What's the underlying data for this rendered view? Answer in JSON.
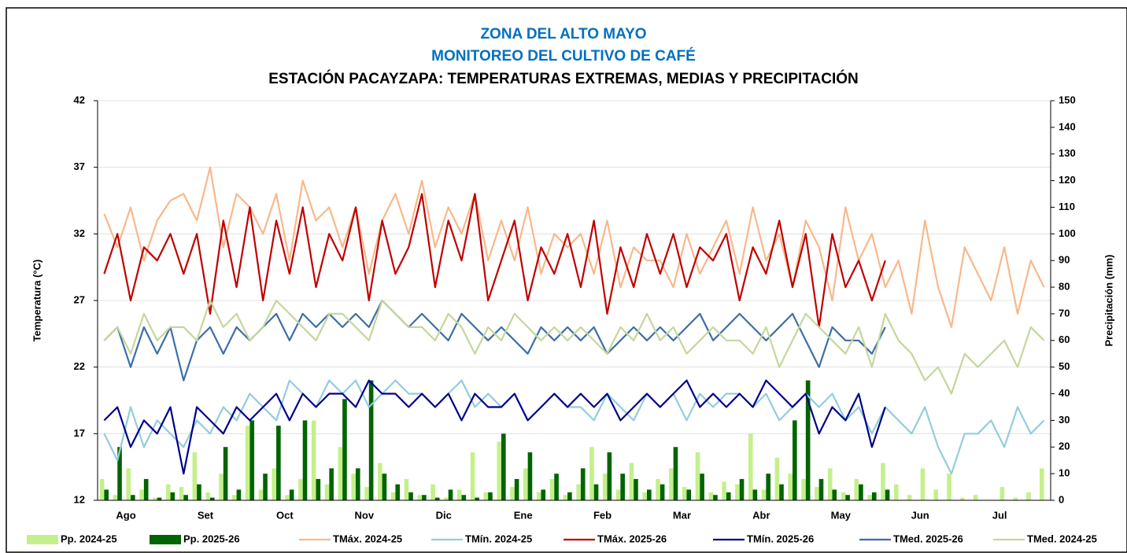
{
  "chart_data": {
    "type": "line",
    "title": "ZONA DEL ALTO MAYO",
    "subtitle": "MONITOREO DEL CULTIVO DE CAFÉ",
    "chart_title": "ESTACIÓN PACAYZAPA: TEMPERATURAS  EXTREMAS,  MEDIAS Y PRECIPITACIÓN",
    "y_label": "Temperatura (°C)",
    "y2_label": "Precipitación (mm)",
    "categories": [
      null,
      null,
      "Ago",
      null,
      null,
      null,
      null,
      null,
      "Set",
      null,
      null,
      null,
      null,
      null,
      "Oct",
      null,
      null,
      null,
      null,
      null,
      "Nov",
      null,
      null,
      null,
      null,
      null,
      "Dic",
      null,
      null,
      null,
      null,
      null,
      "Ene",
      null,
      null,
      null,
      null,
      null,
      "Feb",
      null,
      null,
      null,
      null,
      null,
      "Mar",
      null,
      null,
      null,
      null,
      null,
      "Abr",
      null,
      null,
      null,
      null,
      null,
      "May",
      null,
      null,
      null,
      null,
      null,
      "Jun",
      null,
      null,
      null,
      null,
      null,
      "Jul",
      null,
      null,
      null
    ],
    "ylim": [
      12,
      42
    ],
    "yticks": [
      12,
      17,
      22,
      27,
      32,
      37,
      42
    ],
    "y2lim": [
      0,
      150
    ],
    "y2ticks": [
      0,
      10,
      20,
      30,
      40,
      50,
      60,
      70,
      80,
      90,
      100,
      110,
      120,
      130,
      140,
      150
    ],
    "grid": true,
    "series": [
      {
        "name": "Pp. 2024-25",
        "type": "bar",
        "axis": "y2",
        "color": "#c4f08c",
        "values": [
          8,
          2,
          12,
          4,
          1,
          6,
          5,
          18,
          3,
          10,
          2,
          28,
          4,
          12,
          2,
          8,
          30,
          6,
          20,
          10,
          5,
          14,
          3,
          8,
          2,
          6,
          1,
          4,
          18,
          3,
          22,
          5,
          12,
          3,
          8,
          2,
          6,
          20,
          10,
          4,
          14,
          3,
          8,
          12,
          5,
          18,
          3,
          7,
          6,
          25,
          4,
          16,
          10,
          8,
          5,
          12,
          3,
          8,
          2,
          14,
          6,
          2,
          12,
          4,
          10,
          1,
          2,
          0,
          5,
          1,
          3,
          12
        ]
      },
      {
        "name": "Pp. 2025-26",
        "type": "bar",
        "axis": "y2",
        "color": "#006400",
        "values": [
          4,
          20,
          2,
          8,
          1,
          3,
          2,
          6,
          1,
          20,
          4,
          30,
          10,
          28,
          4,
          30,
          8,
          12,
          38,
          12,
          45,
          10,
          6,
          3,
          2,
          1,
          4,
          2,
          1,
          3,
          25,
          8,
          18,
          4,
          10,
          3,
          12,
          6,
          18,
          10,
          8,
          4,
          6,
          20,
          4,
          10,
          2,
          3,
          8,
          4,
          10,
          6,
          30,
          45,
          8,
          4,
          2,
          6,
          3,
          4,
          null,
          null,
          null,
          null,
          null,
          null,
          null,
          null,
          null,
          null,
          null,
          null
        ]
      },
      {
        "name": "TMáx. 2024-25",
        "type": "line",
        "color": "#f8b88b",
        "values": [
          33.5,
          31,
          34,
          30,
          33,
          34.5,
          35,
          33,
          37,
          31,
          35,
          34,
          32,
          35,
          30,
          36,
          33,
          34,
          31,
          34,
          29,
          33,
          35,
          32,
          36,
          31,
          34,
          32,
          35,
          30,
          33,
          30,
          34,
          29,
          32,
          31,
          32,
          29,
          33,
          28,
          31,
          30,
          30,
          28,
          32,
          29,
          31,
          33,
          29,
          34,
          30,
          32,
          28,
          33,
          31,
          27,
          34,
          30,
          32,
          28,
          30,
          26,
          33,
          28,
          25,
          31,
          29,
          27,
          31,
          26,
          30,
          28
        ]
      },
      {
        "name": "TMín. 2024-25",
        "type": "line",
        "color": "#92cddc",
        "values": [
          17,
          15,
          19,
          16,
          18,
          17,
          16,
          18,
          17,
          19,
          18,
          20,
          19,
          18,
          21,
          20,
          19,
          21,
          20,
          21,
          19,
          20,
          21,
          20,
          20,
          19,
          20,
          21,
          19,
          20,
          19,
          20,
          18,
          19,
          20,
          19,
          19,
          18,
          20,
          19,
          18,
          20,
          19,
          20,
          18,
          20,
          19,
          20,
          20,
          19,
          20,
          18,
          19,
          20,
          19,
          20,
          18,
          19,
          17,
          19,
          18,
          17,
          19,
          16,
          14,
          17,
          17,
          18,
          16,
          19,
          17,
          18
        ]
      },
      {
        "name": "TMáx. 2025-26",
        "type": "line",
        "color": "#c00000",
        "values": [
          29,
          32,
          27,
          31,
          30,
          32,
          29,
          32,
          26,
          33,
          28,
          34,
          27,
          33,
          29,
          34,
          28,
          32,
          30,
          34,
          27,
          33,
          29,
          31,
          35,
          28,
          33,
          30,
          35,
          27,
          30,
          33,
          27,
          31,
          29,
          32,
          28,
          33,
          26,
          31,
          28,
          32,
          29,
          32,
          28,
          31,
          30,
          32,
          27,
          31,
          29,
          33,
          28,
          32,
          25,
          32,
          28,
          30,
          27,
          30,
          null,
          null,
          null,
          null,
          null,
          null,
          null,
          null,
          null,
          null,
          null,
          null
        ]
      },
      {
        "name": "TMín. 2025-26",
        "type": "line",
        "color": "#00008b",
        "values": [
          18,
          19,
          16,
          18,
          17,
          19,
          14,
          19,
          18,
          17,
          19,
          18,
          19,
          20,
          18,
          20,
          19,
          20,
          20,
          19,
          21,
          20,
          20,
          19,
          20,
          19,
          20,
          18,
          20,
          19,
          19,
          20,
          18,
          19,
          20,
          19,
          20,
          19,
          20,
          18,
          19,
          20,
          19,
          20,
          21,
          19,
          20,
          19,
          20,
          19,
          21,
          20,
          19,
          20,
          17,
          19,
          18,
          20,
          16,
          19,
          null,
          null,
          null,
          null,
          null,
          null,
          null,
          null,
          null,
          null,
          null,
          null
        ]
      },
      {
        "name": "TMed. 2025-26",
        "type": "line",
        "color": "#3c6ea8",
        "values": [
          24,
          25,
          22,
          25,
          23,
          25,
          21,
          24,
          25,
          23,
          25,
          24,
          25,
          26,
          24,
          26,
          25,
          26,
          25,
          26,
          25,
          27,
          26,
          25,
          26,
          25,
          24,
          26,
          25,
          24,
          25,
          24,
          23,
          25,
          24,
          25,
          24,
          25,
          23,
          24,
          25,
          24,
          25,
          24,
          25,
          26,
          24,
          25,
          26,
          25,
          24,
          25,
          26,
          24,
          22,
          25,
          24,
          24,
          23,
          25,
          null,
          null,
          null,
          null,
          null,
          null,
          null,
          null,
          null,
          null,
          null,
          null
        ]
      },
      {
        "name": "TMed. 2024-25",
        "type": "line",
        "color": "#c4d79b",
        "values": [
          24,
          25,
          23,
          26,
          24,
          25,
          25,
          24,
          27,
          25,
          26,
          24,
          25,
          27,
          26,
          25,
          24,
          26,
          26,
          25,
          24,
          27,
          26,
          25,
          25,
          24,
          26,
          25,
          23,
          25,
          24,
          26,
          25,
          24,
          25,
          24,
          25,
          24,
          23,
          25,
          24,
          26,
          24,
          25,
          23,
          24,
          25,
          24,
          24,
          23,
          25,
          22,
          24,
          26,
          25,
          24,
          23,
          25,
          22,
          26,
          24,
          23,
          21,
          22,
          20,
          23,
          22,
          23,
          24,
          22,
          25,
          24
        ]
      }
    ]
  }
}
